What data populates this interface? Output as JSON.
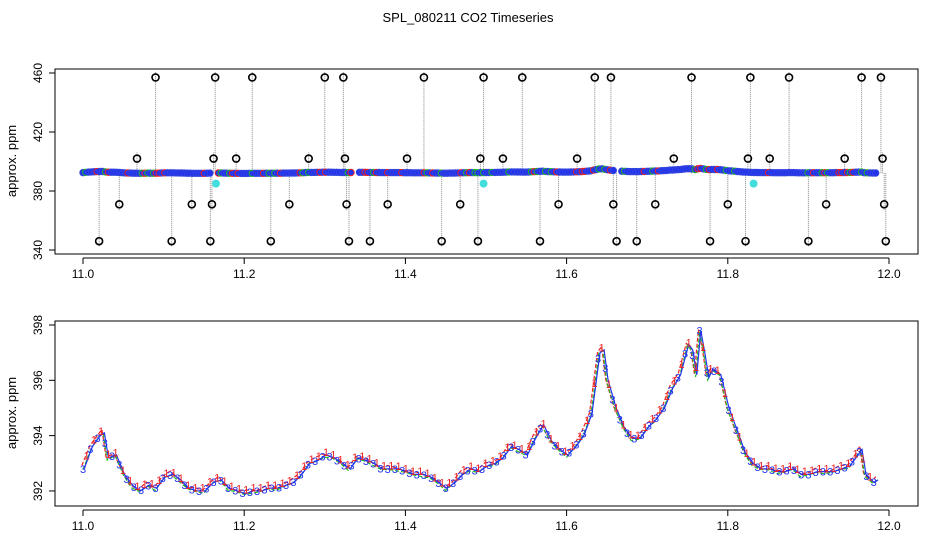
{
  "title": "SPL_080211  CO2 Timeseries",
  "colors": {
    "outlier": "#000000",
    "drop": "#888888",
    "point_fill": "#2233ee",
    "point_edge": "#3344dd",
    "point_red": "#ee2222",
    "point_green": "#22bb22",
    "cyan": "#44dddd",
    "ch1": "#ee2222",
    "ch2": "#22bb22",
    "ch3": "#2233ee"
  },
  "chart_data": [
    {
      "type": "scatter",
      "name": "top-panel",
      "ylabel": "approx. ppm",
      "xlim": [
        11.0,
        12.0
      ],
      "ylim": [
        340,
        460
      ],
      "xticks": [
        11.0,
        11.2,
        11.4,
        11.6,
        11.8,
        12.0
      ],
      "xtick_labels": [
        "11.0",
        "11.2",
        "11.4",
        "11.6",
        "11.8",
        "12.0"
      ],
      "yticks": [
        340,
        380,
        420,
        460
      ],
      "ytick_labels": [
        "340",
        "380",
        "420",
        "460"
      ],
      "baseline": 392,
      "outliers": [
        {
          "x": 11.02,
          "y": 346
        },
        {
          "x": 11.045,
          "y": 371
        },
        {
          "x": 11.067,
          "y": 402
        },
        {
          "x": 11.09,
          "y": 457
        },
        {
          "x": 11.11,
          "y": 346
        },
        {
          "x": 11.135,
          "y": 371
        },
        {
          "x": 11.158,
          "y": 346
        },
        {
          "x": 11.16,
          "y": 371
        },
        {
          "x": 11.162,
          "y": 402
        },
        {
          "x": 11.164,
          "y": 457
        },
        {
          "x": 11.19,
          "y": 402
        },
        {
          "x": 11.21,
          "y": 457
        },
        {
          "x": 11.233,
          "y": 346
        },
        {
          "x": 11.256,
          "y": 371
        },
        {
          "x": 11.28,
          "y": 402
        },
        {
          "x": 11.3,
          "y": 457
        },
        {
          "x": 11.323,
          "y": 457
        },
        {
          "x": 11.325,
          "y": 402
        },
        {
          "x": 11.327,
          "y": 371
        },
        {
          "x": 11.33,
          "y": 346
        },
        {
          "x": 11.356,
          "y": 346
        },
        {
          "x": 11.378,
          "y": 371
        },
        {
          "x": 11.402,
          "y": 402
        },
        {
          "x": 11.423,
          "y": 457
        },
        {
          "x": 11.445,
          "y": 346
        },
        {
          "x": 11.468,
          "y": 371
        },
        {
          "x": 11.49,
          "y": 346
        },
        {
          "x": 11.493,
          "y": 402
        },
        {
          "x": 11.497,
          "y": 457
        },
        {
          "x": 11.521,
          "y": 402
        },
        {
          "x": 11.545,
          "y": 457
        },
        {
          "x": 11.567,
          "y": 346
        },
        {
          "x": 11.59,
          "y": 371
        },
        {
          "x": 11.613,
          "y": 402
        },
        {
          "x": 11.635,
          "y": 457
        },
        {
          "x": 11.655,
          "y": 457
        },
        {
          "x": 11.658,
          "y": 371
        },
        {
          "x": 11.662,
          "y": 346
        },
        {
          "x": 11.687,
          "y": 346
        },
        {
          "x": 11.71,
          "y": 371
        },
        {
          "x": 11.733,
          "y": 402
        },
        {
          "x": 11.755,
          "y": 457
        },
        {
          "x": 11.778,
          "y": 346
        },
        {
          "x": 11.8,
          "y": 371
        },
        {
          "x": 11.822,
          "y": 346
        },
        {
          "x": 11.825,
          "y": 402
        },
        {
          "x": 11.828,
          "y": 457
        },
        {
          "x": 11.852,
          "y": 402
        },
        {
          "x": 11.876,
          "y": 457
        },
        {
          "x": 11.9,
          "y": 346
        },
        {
          "x": 11.922,
          "y": 371
        },
        {
          "x": 11.945,
          "y": 402
        },
        {
          "x": 11.966,
          "y": 457
        },
        {
          "x": 11.99,
          "y": 457
        },
        {
          "x": 11.992,
          "y": 402
        },
        {
          "x": 11.994,
          "y": 371
        },
        {
          "x": 11.996,
          "y": 346
        }
      ],
      "cyan_points": [
        {
          "x": 11.165,
          "y": 385
        },
        {
          "x": 11.497,
          "y": 385
        },
        {
          "x": 11.832,
          "y": 385
        }
      ],
      "gaps": [
        [
          11.16,
          11.167
        ],
        [
          11.333,
          11.34
        ],
        [
          11.66,
          11.668
        ]
      ]
    },
    {
      "type": "line",
      "name": "bottom-panel",
      "ylabel": "approx. ppm",
      "xlim": [
        11.0,
        12.0
      ],
      "ylim": [
        391.6,
        398.0
      ],
      "xticks": [
        11.0,
        11.2,
        11.4,
        11.6,
        11.8,
        12.0
      ],
      "xtick_labels": [
        "11.0",
        "11.2",
        "11.4",
        "11.6",
        "11.8",
        "12.0"
      ],
      "yticks": [
        392,
        394,
        396,
        398
      ],
      "ytick_labels": [
        "392",
        "394",
        "396",
        "398"
      ],
      "series_glyphs": [
        "1",
        "2",
        "3"
      ],
      "profile": [
        [
          11.0,
          392.8
        ],
        [
          11.01,
          393.6
        ],
        [
          11.02,
          394.0
        ],
        [
          11.025,
          394.1
        ],
        [
          11.03,
          393.2
        ],
        [
          11.04,
          393.3
        ],
        [
          11.05,
          392.6
        ],
        [
          11.06,
          392.2
        ],
        [
          11.07,
          392.0
        ],
        [
          11.08,
          392.2
        ],
        [
          11.09,
          392.1
        ],
        [
          11.1,
          392.5
        ],
        [
          11.11,
          392.6
        ],
        [
          11.12,
          392.4
        ],
        [
          11.13,
          392.1
        ],
        [
          11.14,
          392.0
        ],
        [
          11.15,
          392.0
        ],
        [
          11.16,
          392.3
        ],
        [
          11.17,
          392.4
        ],
        [
          11.18,
          392.1
        ],
        [
          11.19,
          392.0
        ],
        [
          11.2,
          391.9
        ],
        [
          11.21,
          392.0
        ],
        [
          11.22,
          392.0
        ],
        [
          11.23,
          392.1
        ],
        [
          11.24,
          392.1
        ],
        [
          11.25,
          392.2
        ],
        [
          11.26,
          392.3
        ],
        [
          11.27,
          392.6
        ],
        [
          11.28,
          393.0
        ],
        [
          11.29,
          393.1
        ],
        [
          11.3,
          393.3
        ],
        [
          11.31,
          393.2
        ],
        [
          11.32,
          393.0
        ],
        [
          11.33,
          392.8
        ],
        [
          11.34,
          393.2
        ],
        [
          11.35,
          393.1
        ],
        [
          11.36,
          393.0
        ],
        [
          11.37,
          392.8
        ],
        [
          11.38,
          392.8
        ],
        [
          11.39,
          392.8
        ],
        [
          11.4,
          392.7
        ],
        [
          11.41,
          392.6
        ],
        [
          11.42,
          392.6
        ],
        [
          11.43,
          392.5
        ],
        [
          11.44,
          392.3
        ],
        [
          11.45,
          392.1
        ],
        [
          11.46,
          392.3
        ],
        [
          11.47,
          392.6
        ],
        [
          11.48,
          392.8
        ],
        [
          11.49,
          392.7
        ],
        [
          11.5,
          392.9
        ],
        [
          11.51,
          393.0
        ],
        [
          11.52,
          393.2
        ],
        [
          11.53,
          393.6
        ],
        [
          11.54,
          393.5
        ],
        [
          11.55,
          393.3
        ],
        [
          11.56,
          393.9
        ],
        [
          11.57,
          394.4
        ],
        [
          11.58,
          393.8
        ],
        [
          11.59,
          393.5
        ],
        [
          11.6,
          393.3
        ],
        [
          11.61,
          393.6
        ],
        [
          11.62,
          394.0
        ],
        [
          11.63,
          394.8
        ],
        [
          11.64,
          397.0
        ],
        [
          11.645,
          397.1
        ],
        [
          11.65,
          396.0
        ],
        [
          11.66,
          395.0
        ],
        [
          11.67,
          394.3
        ],
        [
          11.68,
          393.9
        ],
        [
          11.69,
          393.9
        ],
        [
          11.7,
          394.3
        ],
        [
          11.71,
          394.6
        ],
        [
          11.72,
          395.0
        ],
        [
          11.73,
          395.7
        ],
        [
          11.74,
          396.2
        ],
        [
          11.75,
          397.3
        ],
        [
          11.755,
          397.1
        ],
        [
          11.76,
          396.2
        ],
        [
          11.765,
          397.8
        ],
        [
          11.77,
          397.0
        ],
        [
          11.775,
          396.1
        ],
        [
          11.78,
          396.4
        ],
        [
          11.79,
          396.2
        ],
        [
          11.8,
          395.0
        ],
        [
          11.81,
          394.2
        ],
        [
          11.82,
          393.4
        ],
        [
          11.83,
          393.0
        ],
        [
          11.84,
          392.8
        ],
        [
          11.85,
          392.8
        ],
        [
          11.86,
          392.7
        ],
        [
          11.87,
          392.7
        ],
        [
          11.88,
          392.8
        ],
        [
          11.89,
          392.6
        ],
        [
          11.9,
          392.6
        ],
        [
          11.91,
          392.7
        ],
        [
          11.92,
          392.7
        ],
        [
          11.93,
          392.7
        ],
        [
          11.94,
          392.8
        ],
        [
          11.95,
          392.9
        ],
        [
          11.96,
          393.3
        ],
        [
          11.965,
          393.5
        ],
        [
          11.97,
          392.6
        ],
        [
          11.98,
          392.3
        ],
        [
          11.985,
          392.4
        ]
      ]
    }
  ]
}
